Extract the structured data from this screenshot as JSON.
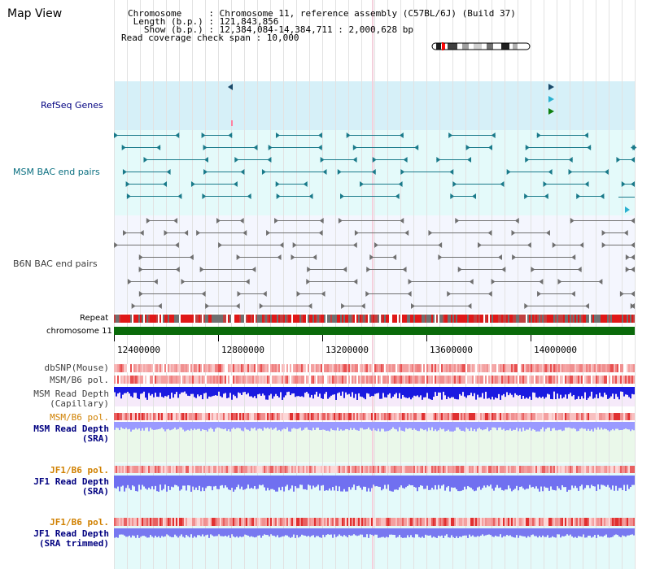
{
  "title": "Map View",
  "header": {
    "chromosome": "Chromosome     : Chromosome 11, reference assembly (C57BL/6J) (Build 37)",
    "length": " Length (b.p.) : 121,843,856",
    "show": "   Show (b.p.) : 12,384,084-14,384,711 : 2,000,628 bp",
    "span": "Read coverage check span : 10,000"
  },
  "tracks": {
    "refseq": "RefSeq Genes",
    "msm_bac": "MSM BAC end pairs",
    "b6n_bac": "B6N BAC end pairs",
    "repeat": "Repeat",
    "chromosome": "chromosome 11",
    "dbsnp": "dbSNP(Mouse)",
    "msm_b6_pol": "MSM/B6 pol.",
    "msm_depth_cap_1": "MSM Read Depth",
    "msm_depth_cap_2": "(Capillary)",
    "msm_b6_pol2": "MSM/B6 pol.",
    "msm_depth_sra_1": "MSM Read Depth",
    "msm_depth_sra_2": "(SRA)",
    "jf1_b6_pol": "JF1/B6 pol.",
    "jf1_depth_sra_1": "JF1 Read Depth",
    "jf1_depth_sra_2": "(SRA)",
    "jf1_b6_pol2": "JF1/B6 pol.",
    "jf1_depth_trim_1": "JF1 Read Depth",
    "jf1_depth_trim_2": "(SRA trimmed)"
  },
  "axis": {
    "ticks": [
      "12400000",
      "12800000",
      "13200000",
      "13600000",
      "14000000"
    ]
  },
  "colors": {
    "refseq_bg": "#d6f0f8",
    "msm_bg": "#e4fafa",
    "b6n_bg": "#f4f6fe",
    "chromosome": "#0a6a0a",
    "msm_sra_bg": "#eaf8ea",
    "jf1_bg": "#e4fafa",
    "navy": "#000080",
    "orange": "#d08000",
    "teal": "#0a6f80"
  }
}
